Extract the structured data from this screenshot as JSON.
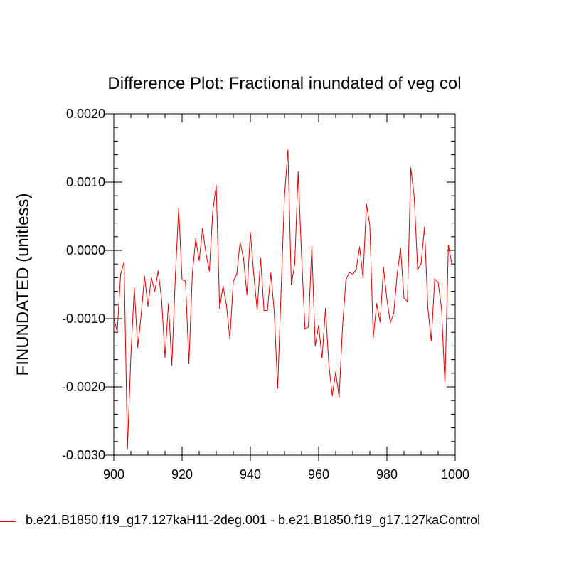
{
  "chart_data": {
    "type": "line",
    "title": "Difference Plot: Fractional inundated of veg col",
    "xlabel": "",
    "ylabel": "FINUNDATED  (unitless)",
    "xlim": [
      900,
      1000
    ],
    "ylim": [
      -0.003,
      0.002
    ],
    "xticks": [
      "900",
      "920",
      "940",
      "960",
      "980",
      "1000"
    ],
    "xtick_values": [
      900,
      920,
      940,
      960,
      980,
      1000
    ],
    "yticks": [
      "0.0020",
      "0.0010",
      "0.0000",
      "-0.0010",
      "-0.0020",
      "-0.0030"
    ],
    "ytick_values": [
      0.002,
      0.001,
      0.0,
      -0.001,
      -0.002,
      -0.003
    ],
    "grid": false,
    "series": [
      {
        "name": "b.e21.B1850.f19_g17.127kaH11-2deg.001 - b.e21.B1850.f19_g17.127kaControl",
        "color": "#e00000",
        "x_start": 900,
        "x_step": 1,
        "values": [
          -0.00098,
          -0.0012,
          -0.00035,
          -0.00017,
          -0.0029,
          -0.00155,
          -0.00055,
          -0.00142,
          -0.00095,
          -0.00038,
          -0.00082,
          -0.0004,
          -0.0006,
          -0.0003,
          -0.00072,
          -0.00157,
          -0.00078,
          -0.00168,
          -0.00042,
          0.00062,
          -0.00043,
          -0.00045,
          -0.00166,
          -0.00035,
          0.00017,
          -0.00015,
          0.00032,
          -5e-05,
          -0.0003,
          0.00058,
          0.00095,
          -0.00085,
          -0.00052,
          -0.0008,
          -0.0013,
          -0.00045,
          -0.00035,
          0.00012,
          -0.00012,
          -0.00065,
          0.00026,
          -0.00035,
          -0.00088,
          -0.00012,
          -0.00088,
          -0.00088,
          -0.00033,
          -0.0009,
          -0.00202,
          -0.0006,
          0.0008,
          0.00147,
          -0.0005,
          -0.0002,
          0.00115,
          -8e-05,
          -0.00115,
          -0.00112,
          6e-05,
          -0.0014,
          -0.0011,
          -0.00158,
          -0.00085,
          -0.00168,
          -0.00213,
          -0.00178,
          -0.00215,
          -0.00112,
          -0.00043,
          -0.00032,
          -0.00035,
          -0.00028,
          5e-05,
          -0.0004,
          0.00068,
          0.00036,
          -0.00128,
          -0.00078,
          -0.00105,
          -0.00025,
          -0.00072,
          -0.00106,
          -0.00092,
          -0.00035,
          3e-05,
          -0.0007,
          -0.00075,
          0.00121,
          0.00078,
          -0.00028,
          -0.0002,
          0.00034,
          -0.00085,
          -0.00133,
          -0.00042,
          -0.00047,
          -0.00085,
          -0.00197,
          8e-05,
          -0.0002
        ]
      }
    ],
    "legend_position": "bottom-left"
  }
}
